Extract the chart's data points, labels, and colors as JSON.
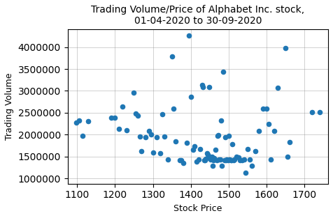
{
  "title": "Trading Volume/Price of Alphabet Inc. stock,\n01-04-2020 to 30-09-2020",
  "xlabel": "Stock Price",
  "ylabel": "Trading Volume",
  "xlim": [
    1075,
    1762
  ],
  "ylim": [
    880000,
    4400000
  ],
  "xticks": [
    1100,
    1200,
    1300,
    1400,
    1500,
    1600,
    1700
  ],
  "yticks": [
    1000000,
    1500000,
    2000000,
    2500000,
    3000000,
    3500000,
    4000000
  ],
  "dot_color": "#1f77b4",
  "dot_size": 20,
  "stock_prices": [
    1098,
    1105,
    1115,
    1130,
    1190,
    1200,
    1210,
    1220,
    1230,
    1250,
    1255,
    1260,
    1265,
    1270,
    1280,
    1290,
    1295,
    1300,
    1310,
    1320,
    1325,
    1330,
    1340,
    1350,
    1355,
    1360,
    1370,
    1375,
    1380,
    1390,
    1395,
    1400,
    1405,
    1410,
    1415,
    1420,
    1425,
    1430,
    1432,
    1435,
    1438,
    1440,
    1442,
    1445,
    1448,
    1450,
    1452,
    1455,
    1458,
    1460,
    1462,
    1465,
    1468,
    1470,
    1472,
    1475,
    1478,
    1480,
    1482,
    1485,
    1488,
    1490,
    1492,
    1495,
    1498,
    1500,
    1502,
    1505,
    1508,
    1510,
    1512,
    1515,
    1520,
    1525,
    1530,
    1535,
    1540,
    1545,
    1550,
    1555,
    1560,
    1570,
    1580,
    1590,
    1600,
    1605,
    1610,
    1620,
    1630,
    1650,
    1655,
    1660,
    1720,
    1740
  ],
  "trading_volumes": [
    2280000,
    2330000,
    1970000,
    2310000,
    2380000,
    2390000,
    2130000,
    2640000,
    2100000,
    2960000,
    2480000,
    2440000,
    1960000,
    1630000,
    1950000,
    2090000,
    2000000,
    1590000,
    1950000,
    1570000,
    2470000,
    1960000,
    1440000,
    3780000,
    2590000,
    1840000,
    1420000,
    1420000,
    1350000,
    1820000,
    4260000,
    2870000,
    1650000,
    1740000,
    1380000,
    1430000,
    1670000,
    3140000,
    3080000,
    1420000,
    1420000,
    1450000,
    1580000,
    1550000,
    3080000,
    1490000,
    1430000,
    1500000,
    1290000,
    1420000,
    1470000,
    1660000,
    1420000,
    1970000,
    1990000,
    1440000,
    1440000,
    2330000,
    1290000,
    3440000,
    1420000,
    1950000,
    1420000,
    1440000,
    1420000,
    1980000,
    1440000,
    1420000,
    1420000,
    1790000,
    1420000,
    1440000,
    1490000,
    1480000,
    1420000,
    1420000,
    1440000,
    1130000,
    1670000,
    1440000,
    1290000,
    1630000,
    2090000,
    2590000,
    2590000,
    2250000,
    1440000,
    2090000,
    3070000,
    3980000,
    1490000,
    1830000,
    2510000,
    2510000
  ],
  "background_color": "white",
  "grid": true
}
